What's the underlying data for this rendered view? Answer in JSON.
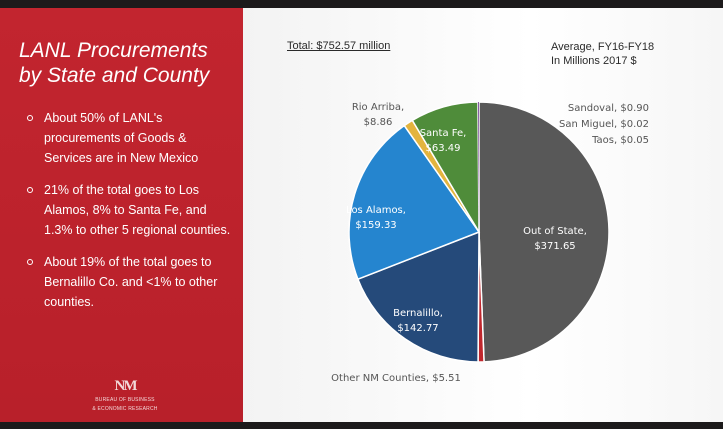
{
  "slide": {
    "title_line1": "LANL Procurements",
    "title_line2": "by State and County",
    "bullets": [
      "About 50% of LANL's procurements of Goods & Services are in New Mexico",
      "21% of the total goes to Los Alamos, 8% to Santa Fe, and 1.3% to other 5 regional counties.",
      "About 19% of the total goes to Bernalillo Co. and <1% to other counties."
    ],
    "logo_org_line1": "BUREAU OF BUSINESS",
    "logo_org_line2": "& ECONOMIC RESEARCH"
  },
  "chart_data": {
    "type": "pie",
    "total_label": "Total: $752.57 million",
    "note_line1": "Average, FY16-FY18",
    "note_line2": "In Millions 2017 $",
    "slices": [
      {
        "name": "Out of State",
        "value": 371.65,
        "label": "$371.65",
        "color": "#585858"
      },
      {
        "name": "Other NM Counties",
        "value": 5.51,
        "label": "$5.51",
        "color": "#c0272d"
      },
      {
        "name": "Bernalillo",
        "value": 142.77,
        "label": "$142.77",
        "color": "#254a7a"
      },
      {
        "name": "Los Alamos",
        "value": 159.33,
        "label": "$159.33",
        "color": "#2585cf"
      },
      {
        "name": "Rio Arriba",
        "value": 8.86,
        "label": "$8.86",
        "color": "#e3b43e"
      },
      {
        "name": "Santa Fe",
        "value": 63.49,
        "label": "$63.49",
        "color": "#4f8c3a"
      },
      {
        "name": "Sandoval",
        "value": 0.9,
        "label": "$0.90",
        "color": "#7c4a9c"
      },
      {
        "name": "San Miguel",
        "value": 0.02,
        "label": "$0.02",
        "color": "#999999"
      },
      {
        "name": "Taos",
        "value": 0.05,
        "label": "$0.05",
        "color": "#bbbbbb"
      }
    ]
  }
}
